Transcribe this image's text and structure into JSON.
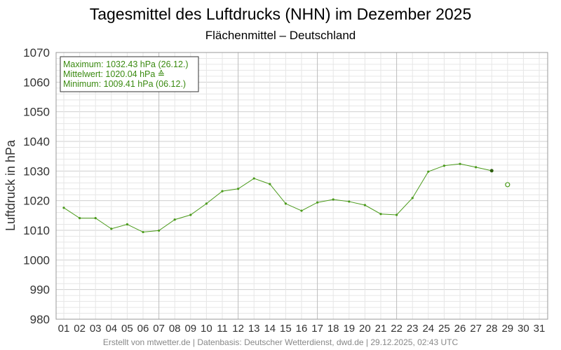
{
  "title": "Tagesmittel des Luftdrucks (NHN) im Dezember 2025",
  "subtitle": "Flächenmittel – Deutschland",
  "footer": "Erstellt von mtwetter.de | Datenbasis: Deutscher Wetterdienst, dwd.de | 29.12.2025, 02:43 UTC",
  "colors": {
    "series": "#4a9a1a",
    "stat_text": "#3a8a10",
    "grid_minor": "#e6e6e6",
    "grid_major": "#cfcfcf",
    "grid_week": "#bdbdbd"
  },
  "stats": {
    "max_line": "Maximum: 1032.43 hPa  (26.12.)",
    "mean_line": "Mittelwert: 1020.04 hPa  ≙",
    "min_line": "Minimum:  1009.41 hPa  (06.12.)"
  },
  "chart_data": {
    "type": "line",
    "title": "Tagesmittel des Luftdrucks (NHN) im Dezember 2025",
    "subtitle": "Flächenmittel – Deutschland",
    "xlabel": "",
    "ylabel": "Luftdruck in hPa",
    "ylim": [
      980,
      1070
    ],
    "yticks": [
      "980",
      "990",
      "1000",
      "1010",
      "1020",
      "1030",
      "1040",
      "1050",
      "1060",
      "1070"
    ],
    "categories": [
      "01",
      "02",
      "03",
      "04",
      "05",
      "06",
      "07",
      "08",
      "09",
      "10",
      "11",
      "12",
      "13",
      "14",
      "15",
      "16",
      "17",
      "18",
      "19",
      "20",
      "21",
      "22",
      "23",
      "24",
      "25",
      "26",
      "27",
      "28",
      "29",
      "30",
      "31"
    ],
    "values": [
      1017.6,
      1014.1,
      1014.1,
      1010.5,
      1012.0,
      1009.4,
      1009.9,
      1013.6,
      1015.2,
      1019.0,
      1023.2,
      1024.0,
      1027.5,
      1025.6,
      1019.0,
      1016.6,
      1019.4,
      1020.4,
      1019.7,
      1018.5,
      1015.5,
      1015.2,
      1020.9,
      1029.8,
      1031.8,
      1032.4,
      1031.3,
      1030.1,
      null,
      null,
      null
    ],
    "forecast_point": {
      "x": "29",
      "y": 1025.4
    },
    "grid": true
  }
}
